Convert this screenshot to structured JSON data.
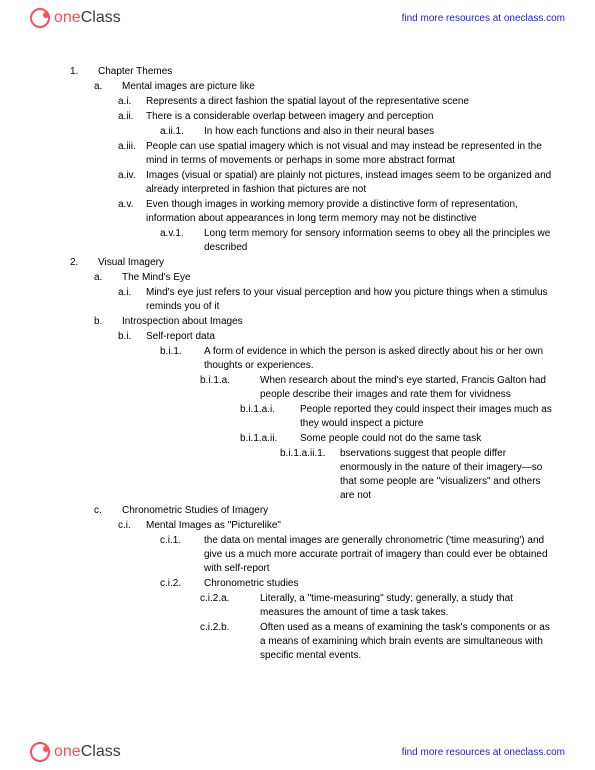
{
  "brand": {
    "one": "one",
    "class": "Class"
  },
  "resources_link": "find more resources at oneclass.com",
  "outline": [
    {
      "lvl": "l0",
      "mw": "",
      "marker": "1.",
      "text": "Chapter Themes"
    },
    {
      "lvl": "l1",
      "mw": "",
      "marker": "a.",
      "text": "Mental images are picture like"
    },
    {
      "lvl": "l2",
      "mw": "",
      "marker": "a.i.",
      "text": "Represents a direct fashion the spatial layout of the representative scene"
    },
    {
      "lvl": "l2",
      "mw": "",
      "marker": "a.ii.",
      "text": "There is a considerable overlap between imagery and perception"
    },
    {
      "lvl": "l3",
      "mw": "marker-w",
      "marker": "a.ii.1.",
      "text": "In how each functions and also in their neural bases"
    },
    {
      "lvl": "l2",
      "mw": "",
      "marker": "a.iii.",
      "text": "People can use spatial imagery which is not visual and may instead be represented in the mind in terms of movements or perhaps in some more abstract format"
    },
    {
      "lvl": "l2",
      "mw": "",
      "marker": "a.iv.",
      "text": "Images (visual or spatial) are plainly not pictures, instead images seem to be organized and already interpreted in fashion that pictures are not"
    },
    {
      "lvl": "l2",
      "mw": "",
      "marker": "a.v.",
      "text": "Even though images in working memory provide a distinctive form of representation, information about appearances in long term memory may not be distinctive"
    },
    {
      "lvl": "l3",
      "mw": "marker-w",
      "marker": "a.v.1.",
      "text": "Long term memory for sensory information seems to obey all the principles we described"
    },
    {
      "lvl": "l0",
      "mw": "",
      "marker": "2.",
      "text": "Visual Imagery"
    },
    {
      "lvl": "l1",
      "mw": "",
      "marker": "a.",
      "text": "The Mind's Eye"
    },
    {
      "lvl": "l2",
      "mw": "",
      "marker": "a.i.",
      "text": "Mind's eye just refers to your visual perception and how you picture things when a stimulus reminds you of it"
    },
    {
      "lvl": "l1",
      "mw": "",
      "marker": "b.",
      "text": "Introspection about Images"
    },
    {
      "lvl": "l2",
      "mw": "",
      "marker": "b.i.",
      "text": "Self-report data"
    },
    {
      "lvl": "l3",
      "mw": "marker-w",
      "marker": "b.i.1.",
      "text": "A form of evidence in which the person is asked directly about his or her own thoughts or experiences."
    },
    {
      "lvl": "l4",
      "mw": "marker-ww",
      "marker": "b.i.1.a.",
      "text": "When research about the mind's eye started, Francis Galton had people describe their images and rate them for vividness"
    },
    {
      "lvl": "l5",
      "mw": "marker-ww",
      "marker": "b.i.1.a.i.",
      "text": "People reported they could inspect their images much as they would inspect a picture"
    },
    {
      "lvl": "l5",
      "mw": "marker-ww",
      "marker": "b.i.1.a.ii.",
      "text": "Some people could not do the same task"
    },
    {
      "lvl": "l6",
      "mw": "marker-ww",
      "marker": "b.i.1.a.ii.1.",
      "text": "bservations suggest that people differ enormously in the nature of their imagery—so that some people are \"visualizers\" and others are not"
    },
    {
      "lvl": "l1",
      "mw": "",
      "marker": "c.",
      "text": "Chronometric Studies of Imagery"
    },
    {
      "lvl": "l2",
      "mw": "",
      "marker": "c.i.",
      "text": "Mental Images as \"Picturelike\""
    },
    {
      "lvl": "l3",
      "mw": "marker-w",
      "marker": "c.i.1.",
      "text": "the data on mental images are generally chronometric ('time measuring') and give us a much more accurate portrait of imagery than could ever be obtained with self-report"
    },
    {
      "lvl": "l3",
      "mw": "marker-w",
      "marker": "c.i.2.",
      "text": "Chronometric studies"
    },
    {
      "lvl": "l4",
      "mw": "marker-ww",
      "marker": "c.i.2.a.",
      "text": "Literally, a \"time-measuring\" study; generally, a study that measures the amount of time a task takes."
    },
    {
      "lvl": "l4",
      "mw": "marker-ww",
      "marker": "c.i.2.b.",
      "text": "Often used as a means of examining the task's components or as a means of examining which brain events are simultaneous with specific mental events."
    }
  ]
}
